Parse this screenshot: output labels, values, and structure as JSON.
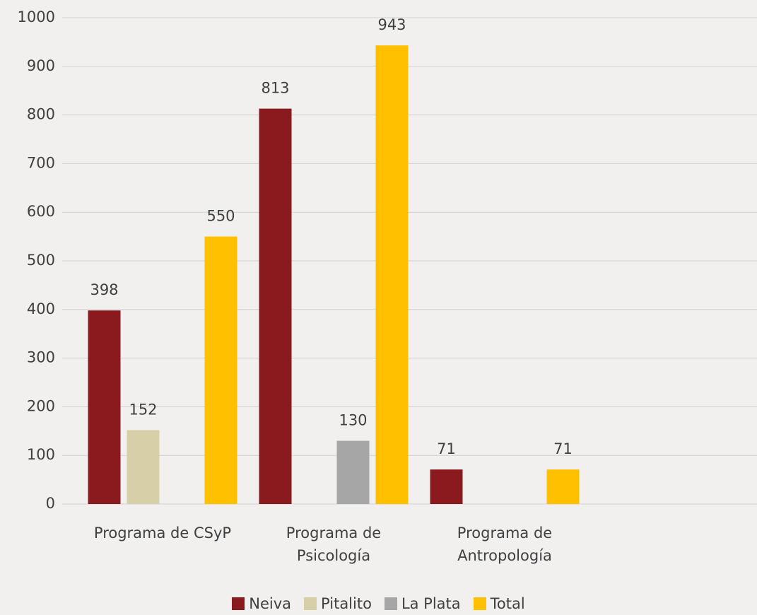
{
  "chart_data": {
    "type": "bar",
    "categories": [
      "Programa de CSyP",
      "Programa de Psicología",
      "Programa de Antropología"
    ],
    "series": [
      {
        "name": "Neiva",
        "color": "#8b1a1e",
        "values": [
          398,
          813,
          71
        ]
      },
      {
        "name": "Pitalito",
        "color": "#d6cfa8",
        "values": [
          152,
          null,
          null
        ]
      },
      {
        "name": "La Plata",
        "color": "#a6a6a6",
        "values": [
          null,
          130,
          null
        ]
      },
      {
        "name": "Total",
        "color": "#ffc000",
        "values": [
          550,
          943,
          71
        ]
      }
    ],
    "ylim": [
      0,
      1000
    ],
    "yticks": [
      0,
      100,
      200,
      300,
      400,
      500,
      600,
      700,
      800,
      900,
      1000
    ],
    "grid": true,
    "legend": "bottom"
  }
}
